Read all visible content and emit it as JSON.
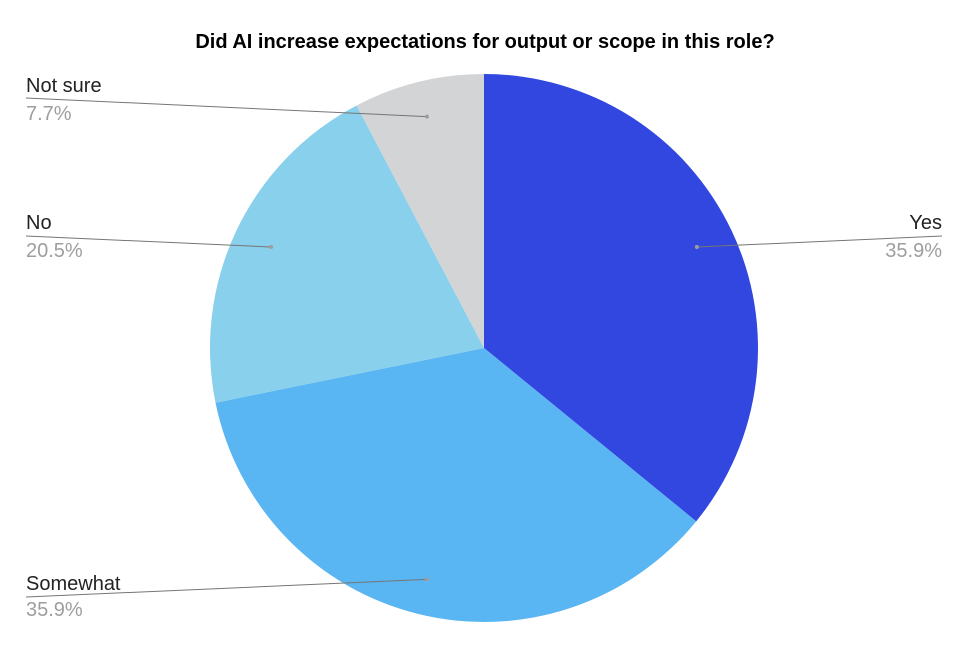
{
  "chart_data": {
    "type": "pie",
    "title": "Did AI increase expectations for output or scope in this role?",
    "slices": [
      {
        "label": "Yes",
        "value": 35.9,
        "display": "35.9%",
        "color": "#3246e0"
      },
      {
        "label": "Somewhat",
        "value": 35.9,
        "display": "35.9%",
        "color": "#5ab6f2"
      },
      {
        "label": "No",
        "value": 20.5,
        "display": "20.5%",
        "color": "#89d0ec"
      },
      {
        "label": "Not sure",
        "value": 7.7,
        "display": "7.7%",
        "color": "#d3d4d6"
      }
    ],
    "start_angle": "12 o'clock",
    "direction": "clockwise",
    "legend": "none"
  }
}
